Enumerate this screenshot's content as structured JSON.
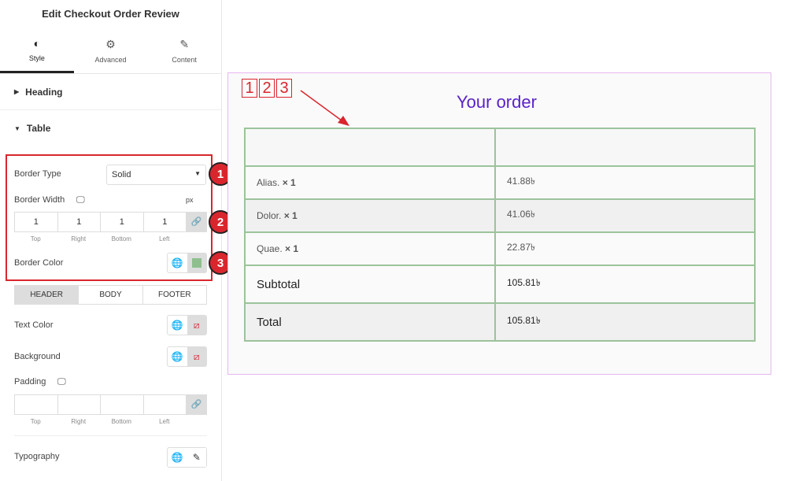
{
  "panel": {
    "title": "Edit Checkout Order Review",
    "tabs": [
      {
        "label": "Style",
        "icon": "half-circle-icon"
      },
      {
        "label": "Advanced",
        "icon": "gear-icon"
      },
      {
        "label": "Content",
        "icon": "pencil-icon"
      }
    ],
    "sections": {
      "heading": "Heading",
      "table": "Table"
    },
    "border_type": {
      "label": "Border Type",
      "value": "Solid"
    },
    "border_width": {
      "label": "Border Width",
      "unit": "px",
      "values": [
        "1",
        "1",
        "1",
        "1"
      ],
      "labels": [
        "Top",
        "Right",
        "Bottom",
        "Left"
      ]
    },
    "border_color": {
      "label": "Border Color",
      "color": "#8fbf8e"
    },
    "segments": [
      "HEADER",
      "BODY",
      "FOOTER"
    ],
    "text_color": "Text Color",
    "background": "Background",
    "padding": {
      "label": "Padding",
      "labels": [
        "Top",
        "Right",
        "Bottom",
        "Left"
      ]
    },
    "typography": "Typography"
  },
  "annotations": {
    "badges": [
      "1",
      "2",
      "3"
    ],
    "boxes": [
      "1",
      "2",
      "3"
    ]
  },
  "preview": {
    "title": "Your order",
    "title_color": "#5a22c8",
    "rows": [
      {
        "name": "Alias.",
        "qty": "× 1",
        "price": "41.88৳"
      },
      {
        "name": "Dolor.",
        "qty": "× 1",
        "price": "41.06৳"
      },
      {
        "name": "Quae.",
        "qty": "× 1",
        "price": "22.87৳"
      }
    ],
    "subtotal": {
      "label": "Subtotal",
      "value": "105.81৳"
    },
    "total": {
      "label": "Total",
      "value": "105.81৳"
    }
  }
}
